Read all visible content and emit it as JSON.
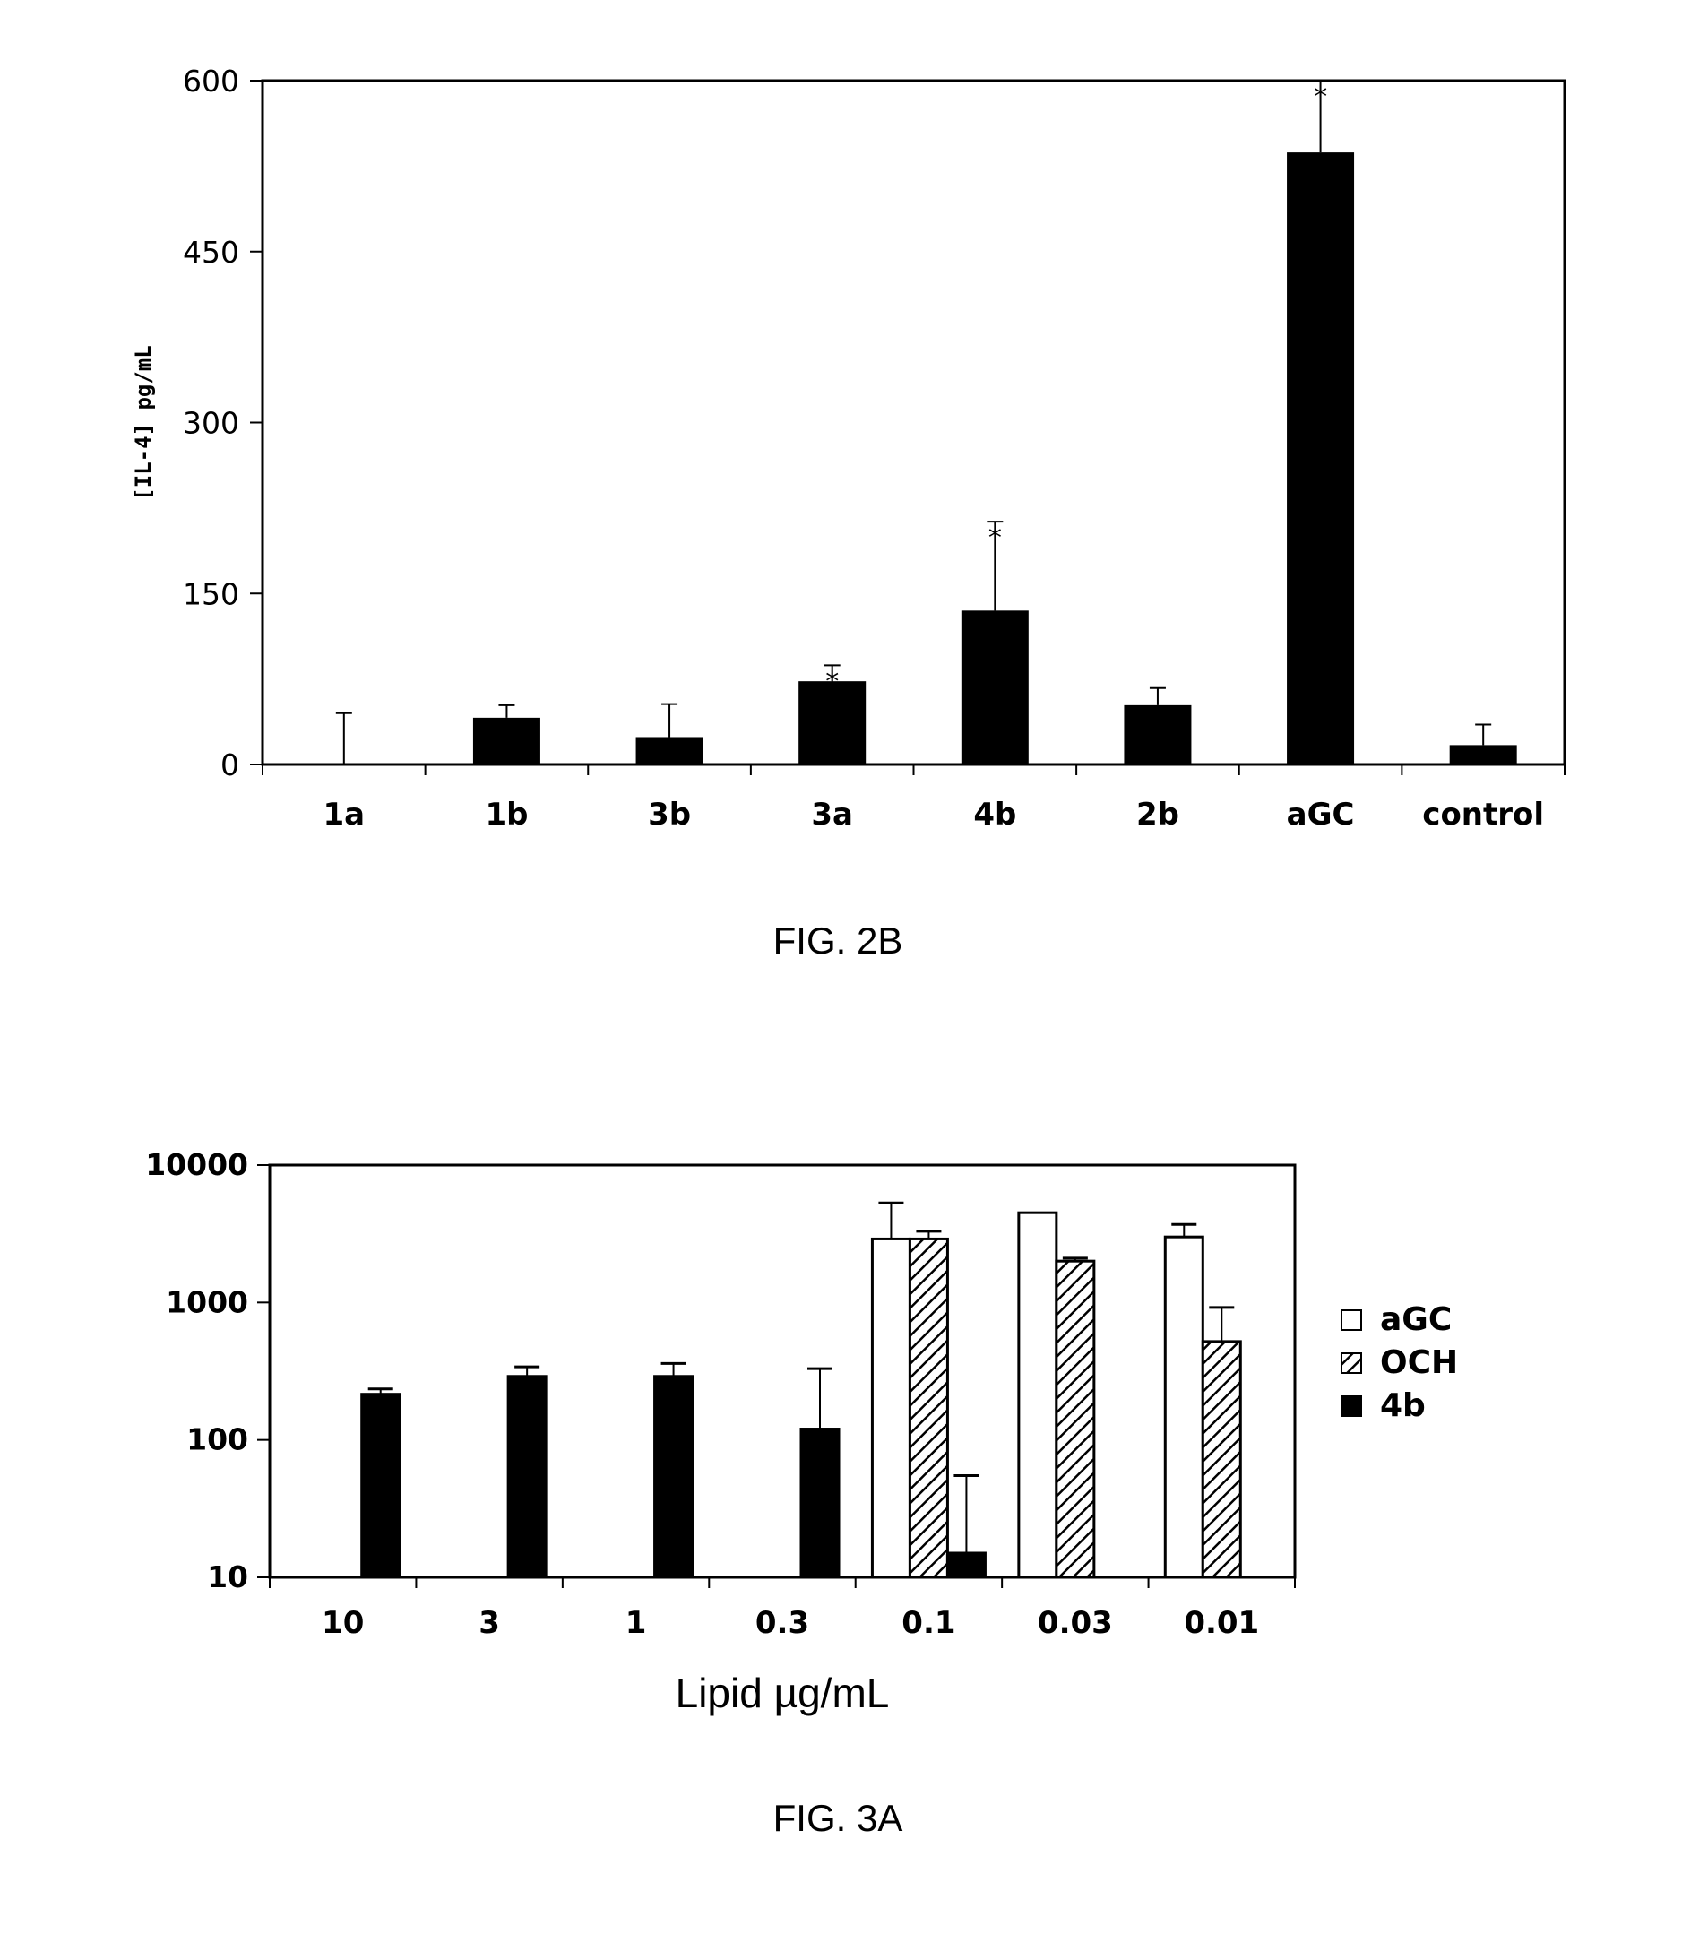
{
  "chart_data": [
    {
      "id": "fig2b",
      "type": "bar",
      "caption": "FIG. 2B",
      "ylabel": "[IL-4] pg/mL",
      "xlabel": "",
      "ylim": [
        0,
        600
      ],
      "yticks": [
        "0",
        "150",
        "300",
        "450",
        "600"
      ],
      "categories": [
        "1a",
        "1b",
        "3b",
        "3a",
        "4b",
        "2b",
        "aGC",
        "control"
      ],
      "values": [
        0,
        41,
        24,
        73,
        135,
        52,
        537,
        17
      ],
      "errors": [
        45,
        11,
        29,
        14,
        78,
        15,
        63,
        18
      ],
      "significance": [
        "",
        "",
        "",
        "*",
        "*",
        "",
        "*",
        ""
      ],
      "bar_color": "#000000",
      "grid": false
    },
    {
      "id": "fig3a",
      "type": "bar",
      "caption": "FIG. 3A",
      "xlabel": "Lipid µg/mL",
      "ylabel": "",
      "yscale": "log",
      "ylim": [
        10,
        10000
      ],
      "yticks": [
        "10",
        "100",
        "1000",
        "10000"
      ],
      "categories": [
        "10",
        "3",
        "1",
        "0.3",
        "0.1",
        "0.03",
        "0.01"
      ],
      "legend_position": "right",
      "grid": false,
      "series": [
        {
          "name": "aGC",
          "fill": "white",
          "values": [
            null,
            null,
            null,
            null,
            2900,
            4500,
            3000
          ],
          "errors": [
            null,
            null,
            null,
            null,
            2400,
            0,
            700
          ]
        },
        {
          "name": "OCH",
          "fill": "hatched",
          "values": [
            null,
            null,
            null,
            null,
            2900,
            2000,
            520
          ],
          "errors": [
            null,
            null,
            null,
            null,
            400,
            100,
            400
          ]
        },
        {
          "name": "4b",
          "fill": "black",
          "values": [
            215,
            290,
            290,
            120,
            15,
            null,
            null
          ],
          "errors": [
            20,
            50,
            70,
            210,
            40,
            null,
            null
          ]
        }
      ]
    }
  ]
}
